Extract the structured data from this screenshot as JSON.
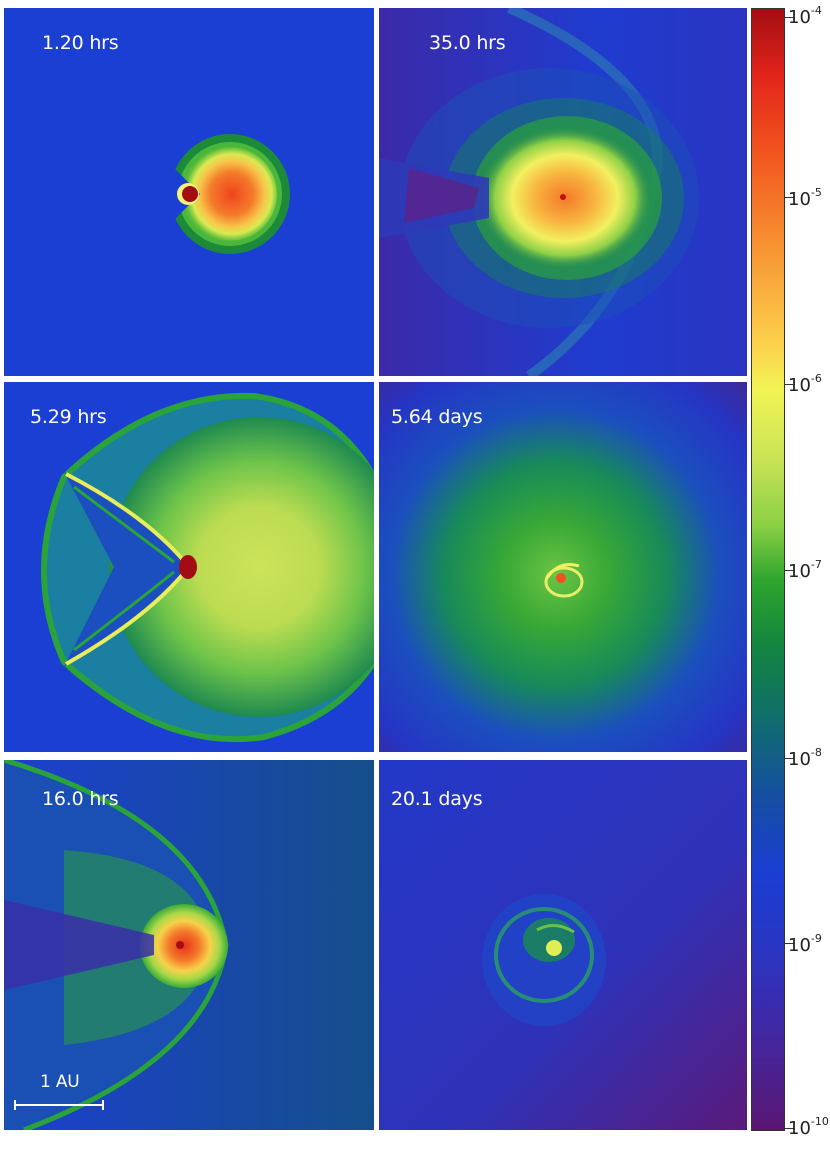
{
  "panels": [
    {
      "label": "1.20 hrs"
    },
    {
      "label": "35.0 hrs"
    },
    {
      "label": "5.29 hrs"
    },
    {
      "label": "5.64 days"
    },
    {
      "label": "16.0 hrs"
    },
    {
      "label": "20.1 days"
    }
  ],
  "scale_bar": {
    "label": "1 AU"
  },
  "colorbar": {
    "ticks": [
      {
        "base": "10",
        "exp": "-4"
      },
      {
        "base": "10",
        "exp": "-5"
      },
      {
        "base": "10",
        "exp": "-6"
      },
      {
        "base": "10",
        "exp": "-7"
      },
      {
        "base": "10",
        "exp": "-8"
      },
      {
        "base": "10",
        "exp": "-9"
      },
      {
        "base": "10",
        "exp": "-10"
      }
    ]
  },
  "colors": {
    "background_blue": "#1a3fd0",
    "deep_purple": "#5a1672",
    "peak_red": "#a30c12",
    "yellow": "#f2f455",
    "green": "#2ea52e"
  }
}
